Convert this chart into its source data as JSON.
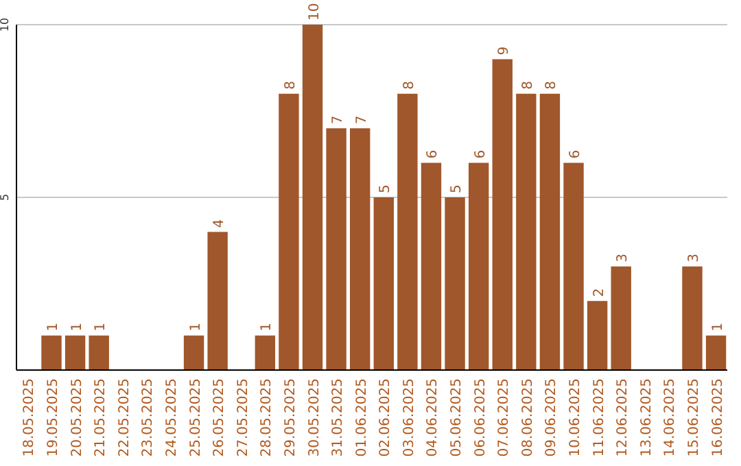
{
  "chart_data": {
    "type": "bar",
    "categories": [
      "18.05.2025",
      "19.05.2025",
      "20.05.2025",
      "21.05.2025",
      "22.05.2025",
      "23.05.2025",
      "24.05.2025",
      "25.05.2025",
      "26.05.2025",
      "27.05.2025",
      "28.05.2025",
      "29.05.2025",
      "30.05.2025",
      "31.05.2025",
      "01.06.2025",
      "02.06.2025",
      "03.06.2025",
      "04.06.2025",
      "05.06.2025",
      "06.06.2025",
      "07.06.2025",
      "08.06.2025",
      "09.06.2025",
      "10.06.2025",
      "11.06.2025",
      "12.06.2025",
      "13.06.2025",
      "14.06.2025",
      "15.06.2025",
      "16.06.2025"
    ],
    "values": [
      0,
      1,
      1,
      1,
      0,
      0,
      0,
      1,
      4,
      0,
      1,
      8,
      10,
      7,
      7,
      5,
      8,
      6,
      5,
      6,
      9,
      8,
      8,
      6,
      2,
      3,
      0,
      0,
      3,
      1
    ],
    "value_labels": [
      null,
      "1",
      "1",
      "1",
      null,
      null,
      null,
      "1",
      "4",
      null,
      "1",
      "8",
      "10",
      "7",
      "7",
      "5",
      "8",
      "6",
      "5",
      "6",
      "9",
      "8",
      "8",
      "6",
      "2",
      "3",
      null,
      null,
      "3",
      "1"
    ],
    "color": "#a0572b",
    "ylim": [
      0,
      10
    ],
    "yticks": [
      5,
      10
    ],
    "grid": "y"
  }
}
